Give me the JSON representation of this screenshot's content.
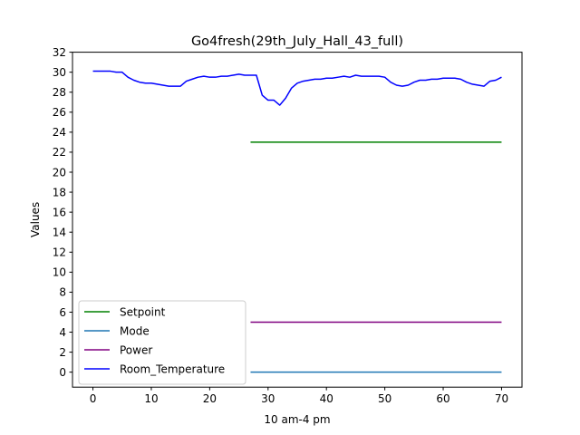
{
  "chart_data": {
    "type": "line",
    "title": "Go4fresh(29th_July_Hall_43_full)",
    "xlabel": "10 am-4 pm",
    "ylabel": "Values",
    "xlim": [
      -3.5,
      73.5
    ],
    "ylim": [
      -1.5,
      32
    ],
    "xticks": [
      0,
      10,
      20,
      30,
      40,
      50,
      60,
      70
    ],
    "yticks": [
      0,
      2,
      4,
      6,
      8,
      10,
      12,
      14,
      16,
      18,
      20,
      22,
      24,
      26,
      28,
      30,
      32
    ],
    "grid": false,
    "legend_position": "lower-left",
    "series": [
      {
        "name": "Setpoint",
        "color": "#008000",
        "x": [
          27,
          70
        ],
        "y": [
          23,
          23
        ]
      },
      {
        "name": "Mode",
        "color": "#1f77b4",
        "x": [
          27,
          70
        ],
        "y": [
          0,
          0
        ]
      },
      {
        "name": "Power",
        "color": "#800080",
        "x": [
          27,
          70
        ],
        "y": [
          5,
          5
        ]
      },
      {
        "name": "Room_Temperature",
        "color": "#0000ff",
        "x": [
          0,
          1,
          2,
          3,
          4,
          5,
          6,
          7,
          8,
          9,
          10,
          11,
          12,
          13,
          14,
          15,
          16,
          17,
          18,
          19,
          20,
          21,
          22,
          23,
          24,
          25,
          26,
          27,
          28,
          29,
          30,
          31,
          32,
          33,
          34,
          35,
          36,
          37,
          38,
          39,
          40,
          41,
          42,
          43,
          44,
          45,
          46,
          47,
          48,
          49,
          50,
          51,
          52,
          53,
          54,
          55,
          56,
          57,
          58,
          59,
          60,
          61,
          62,
          63,
          64,
          65,
          66,
          67,
          68,
          69,
          70
        ],
        "y": [
          30.1,
          30.1,
          30.1,
          30.1,
          30.0,
          30.0,
          29.5,
          29.2,
          29.0,
          28.9,
          28.9,
          28.8,
          28.7,
          28.6,
          28.6,
          28.6,
          29.1,
          29.3,
          29.5,
          29.6,
          29.5,
          29.5,
          29.6,
          29.6,
          29.7,
          29.8,
          29.7,
          29.7,
          29.7,
          27.7,
          27.2,
          27.2,
          26.7,
          27.4,
          28.4,
          28.9,
          29.1,
          29.2,
          29.3,
          29.3,
          29.4,
          29.4,
          29.5,
          29.6,
          29.5,
          29.7,
          29.6,
          29.6,
          29.6,
          29.6,
          29.5,
          29.0,
          28.7,
          28.6,
          28.7,
          29.0,
          29.2,
          29.2,
          29.3,
          29.3,
          29.4,
          29.4,
          29.4,
          29.3,
          29.0,
          28.8,
          28.7,
          28.6,
          29.1,
          29.2,
          29.5
        ]
      }
    ]
  }
}
